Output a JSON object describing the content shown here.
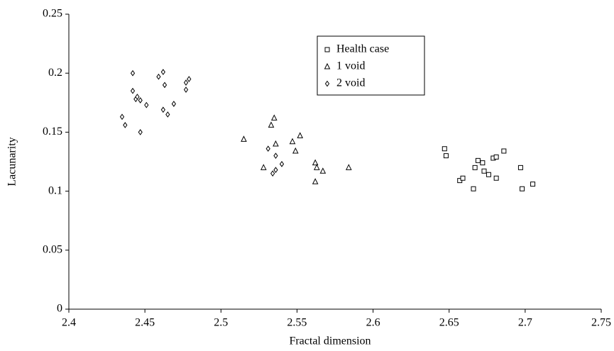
{
  "chart_data": {
    "type": "scatter",
    "x_label": "Fractal dimension",
    "y_label": "Lacunarity",
    "xlim": [
      2.4,
      2.75
    ],
    "xticks": [
      2.4,
      2.45,
      2.5,
      2.55,
      2.6,
      2.65,
      2.7,
      2.75
    ],
    "ylim": [
      0,
      0.25
    ],
    "yticks": [
      0,
      0.05,
      0.1,
      0.15,
      0.2,
      0.25
    ],
    "legend": "top-center",
    "series": [
      {
        "name": "Health case",
        "marker": "square",
        "color": "#000000",
        "x": [
          2.647,
          2.648,
          2.657,
          2.659,
          2.666,
          2.667,
          2.669,
          2.672,
          2.673,
          2.676,
          2.679,
          2.681,
          2.681,
          2.686,
          2.697,
          2.698,
          2.705
        ],
        "values": [
          0.136,
          0.13,
          0.109,
          0.111,
          0.102,
          0.12,
          0.126,
          0.124,
          0.117,
          0.114,
          0.128,
          0.129,
          0.111,
          0.134,
          0.12,
          0.102,
          0.106
        ]
      },
      {
        "name": "1 void",
        "marker": "triangle",
        "color": "#000000",
        "x": [
          2.515,
          2.528,
          2.533,
          2.535,
          2.536,
          2.547,
          2.549,
          2.552,
          2.562,
          2.562,
          2.563,
          2.567,
          2.584
        ],
        "values": [
          0.144,
          0.12,
          0.156,
          0.162,
          0.14,
          0.142,
          0.134,
          0.147,
          0.124,
          0.108,
          0.12,
          0.117,
          0.12
        ]
      },
      {
        "name": "2 void",
        "marker": "diamond",
        "color": "#000000",
        "x": [
          2.435,
          2.437,
          2.442,
          2.442,
          2.444,
          2.445,
          2.447,
          2.447,
          2.451,
          2.459,
          2.462,
          2.463,
          2.462,
          2.465,
          2.469,
          2.477,
          2.477,
          2.479,
          2.531,
          2.536,
          2.534,
          2.536,
          2.54
        ],
        "values": [
          0.163,
          0.156,
          0.2,
          0.185,
          0.178,
          0.18,
          0.177,
          0.15,
          0.173,
          0.197,
          0.201,
          0.19,
          0.169,
          0.165,
          0.174,
          0.192,
          0.186,
          0.195,
          0.136,
          0.13,
          0.115,
          0.118,
          0.123
        ]
      }
    ]
  }
}
